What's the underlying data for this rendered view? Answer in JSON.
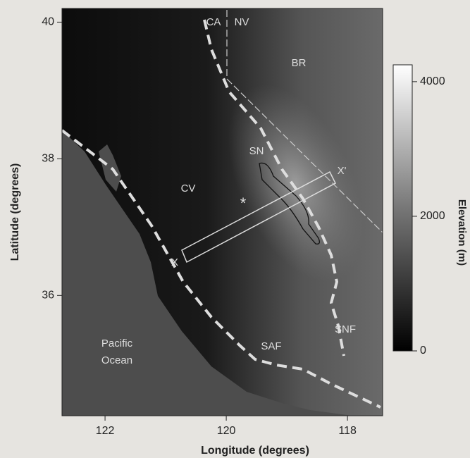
{
  "map": {
    "axes": {
      "xlabel": "Longitude (degrees)",
      "ylabel": "Latitude (degrees)",
      "xlim": [
        122.71,
        117.42
      ],
      "ylim": [
        34.24,
        40.2
      ],
      "xticks": [
        122,
        120,
        118
      ],
      "yticks": [
        40,
        38,
        36
      ]
    },
    "colorbar": {
      "label": "Elevation (m)",
      "lim": [
        0,
        4250
      ],
      "ticks": [
        4000,
        2000,
        0
      ]
    },
    "labels": [
      "CA",
      "NV",
      "BR",
      "SN",
      "CV",
      "*",
      "X'",
      "X",
      "SNF",
      "SAF",
      "Pacific",
      "Ocean"
    ]
  }
}
